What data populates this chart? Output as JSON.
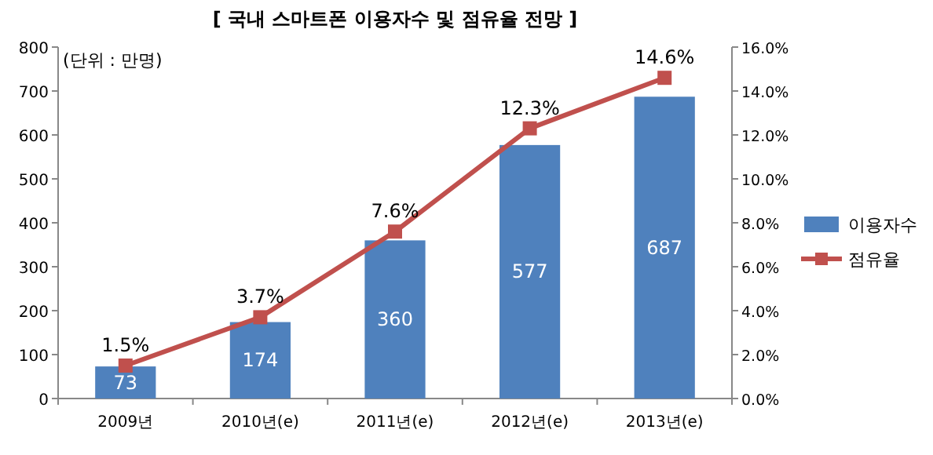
{
  "chart_data": {
    "type": "bar",
    "title": "[ 국내 스마트폰 이용자수 및 점유율 전망 ]",
    "annotations": [
      "(단위 : 만명)"
    ],
    "categories": [
      "2009년",
      "2010년(e)",
      "2011년(e)",
      "2012년(e)",
      "2013년(e)"
    ],
    "series": [
      {
        "name": "이용자수",
        "color": "#4f81bd",
        "values": [
          73,
          174,
          360,
          577,
          687
        ],
        "value_labels": [
          "73",
          "174",
          "360",
          "577",
          "687"
        ]
      },
      {
        "name": "점유율",
        "type": "line",
        "axis": "y2",
        "color": "#c0504d",
        "marker": "square",
        "values": [
          1.5,
          3.7,
          7.6,
          12.3,
          14.6
        ],
        "value_labels": [
          "1.5%",
          "3.7%",
          "7.6%",
          "12.3%",
          "14.6%"
        ]
      }
    ],
    "ylim": [
      0,
      800
    ],
    "yticks": [
      0,
      100,
      200,
      300,
      400,
      500,
      600,
      700,
      800
    ],
    "y2lim": [
      0,
      16
    ],
    "y2ticks": [
      {
        "value": 0,
        "label": "0.0%"
      },
      {
        "value": 2,
        "label": "2.0%"
      },
      {
        "value": 4,
        "label": "4.0%"
      },
      {
        "value": 6,
        "label": "6.0%"
      },
      {
        "value": 8,
        "label": "8.0%"
      },
      {
        "value": 10,
        "label": "10.0%"
      },
      {
        "value": 12,
        "label": "12.0%"
      },
      {
        "value": 14,
        "label": "14.0%"
      },
      {
        "value": 16,
        "label": "16.0%"
      }
    ],
    "legend": "right"
  }
}
